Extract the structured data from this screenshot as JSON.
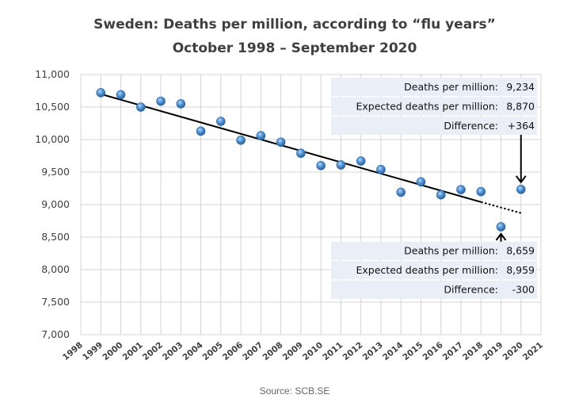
{
  "chart_data": {
    "type": "scatter",
    "title": "Sweden: Deaths per million, according to “flu years”",
    "subtitle": "October 1998 – September 2020",
    "xlabel": "",
    "ylabel": "",
    "xlim": [
      1998,
      2021
    ],
    "ylim": [
      7000,
      11000
    ],
    "x_ticks": [
      "1998",
      "1999",
      "2000",
      "2001",
      "2002",
      "2003",
      "2004",
      "2005",
      "2006",
      "2007",
      "2008",
      "2009",
      "2010",
      "2011",
      "2012",
      "2013",
      "2014",
      "2015",
      "2016",
      "2017",
      "2018",
      "2019",
      "2020",
      "2021"
    ],
    "y_ticks": [
      "7,000",
      "7,500",
      "8,000",
      "8,500",
      "9,000",
      "9,500",
      "10,000",
      "10,500",
      "11,000"
    ],
    "y_tick_values": [
      7000,
      7500,
      8000,
      8500,
      9000,
      9500,
      10000,
      10500,
      11000
    ],
    "grid": true,
    "series": [
      {
        "name": "Deaths per million",
        "x": [
          1999,
          2000,
          2001,
          2002,
          2003,
          2004,
          2005,
          2006,
          2007,
          2008,
          2009,
          2010,
          2011,
          2012,
          2013,
          2014,
          2015,
          2016,
          2017,
          2018,
          2019,
          2020
        ],
        "values": [
          10720,
          10690,
          10500,
          10590,
          10550,
          10130,
          10280,
          9990,
          10060,
          9960,
          9790,
          9600,
          9610,
          9670,
          9540,
          9190,
          9350,
          9150,
          9230,
          9200,
          8659,
          9234
        ],
        "color": "#4f8fd0"
      }
    ],
    "trend": {
      "solid": {
        "x": [
          1999,
          2018
        ],
        "y": [
          10700,
          9040
        ]
      },
      "dotted": {
        "x": [
          2018,
          2020
        ],
        "y": [
          9040,
          8870
        ]
      }
    },
    "annotations": [
      {
        "target_year": 2020,
        "rows": [
          {
            "label": "Deaths per million:",
            "value": "9,234"
          },
          {
            "label": "Expected deaths per million:",
            "value": "8,870"
          },
          {
            "label": "Difference:",
            "value": "+364"
          }
        ]
      },
      {
        "target_year": 2019,
        "rows": [
          {
            "label": "Deaths per million:",
            "value": "8,659"
          },
          {
            "label": "Expected deaths per million:",
            "value": "8,959"
          },
          {
            "label": "Difference:",
            "value": "-300"
          }
        ]
      }
    ],
    "source": "Source: SCB.SE"
  }
}
